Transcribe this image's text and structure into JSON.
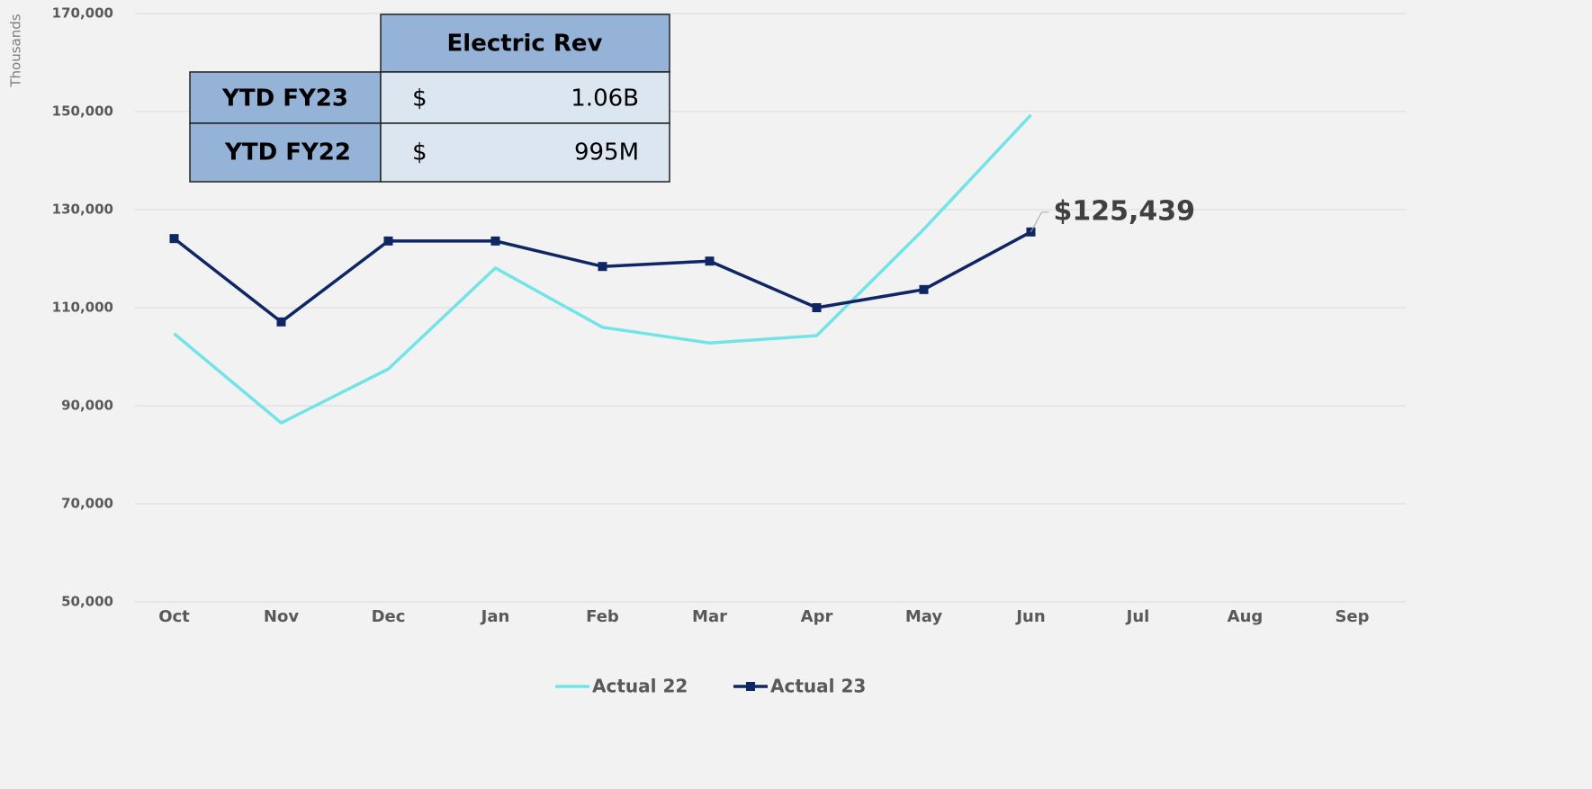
{
  "chart_data": {
    "type": "line",
    "y_axis_label": "Thousands",
    "categories": [
      "Oct",
      "Nov",
      "Dec",
      "Jan",
      "Feb",
      "Mar",
      "Apr",
      "May",
      "Jun",
      "Jul",
      "Aug",
      "Sep"
    ],
    "series": [
      {
        "name": "Actual 22",
        "color": "#72e4e8",
        "values": [
          104700,
          86500,
          97500,
          118100,
          106000,
          102800,
          104300,
          126000,
          149300,
          null,
          null,
          null
        ]
      },
      {
        "name": "Actual 23",
        "color": "#0e2663",
        "marker": "square",
        "values": [
          124100,
          107100,
          123600,
          123600,
          118400,
          119500,
          110000,
          113700,
          125439,
          null,
          null,
          null
        ],
        "value_labels": [
          null,
          null,
          null,
          null,
          null,
          null,
          null,
          null,
          "$125,439",
          null,
          null,
          null
        ]
      }
    ],
    "ylim": [
      50000,
      170000
    ],
    "yticks": [
      {
        "value": 50000,
        "label": "50,000"
      },
      {
        "value": 70000,
        "label": "70,000"
      },
      {
        "value": 90000,
        "label": "90,000"
      },
      {
        "value": 110000,
        "label": "110,000"
      },
      {
        "value": 130000,
        "label": "130,000"
      },
      {
        "value": 150000,
        "label": "150,000"
      },
      {
        "value": 170000,
        "label": "170,000"
      }
    ],
    "grid": true,
    "legend": "bottom"
  },
  "table": {
    "title": "Electric Rev",
    "rows": [
      [
        "YTD FY23",
        "$",
        "1.06B"
      ],
      [
        "YTD FY22",
        "$",
        "995M"
      ]
    ]
  }
}
